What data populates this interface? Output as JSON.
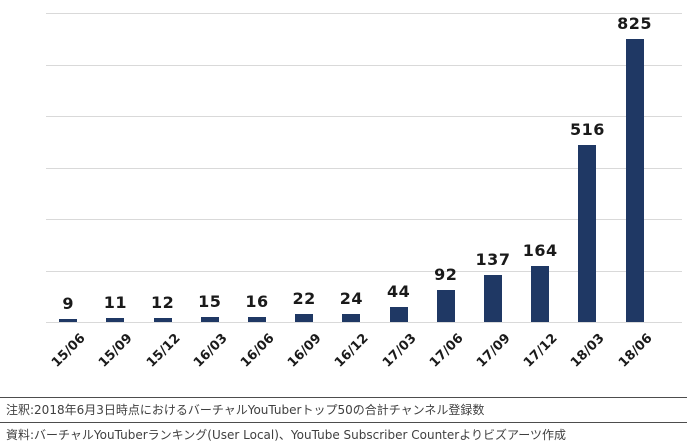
{
  "chart_data": {
    "type": "bar",
    "title": "",
    "xlabel": "",
    "ylabel": "",
    "categories": [
      "15/06",
      "15/09",
      "15/12",
      "16/03",
      "16/06",
      "16/09",
      "16/12",
      "17/03",
      "17/06",
      "17/09",
      "17/12",
      "18/03",
      "18/06"
    ],
    "values": [
      9,
      11,
      12,
      15,
      16,
      22,
      24,
      44,
      92,
      137,
      164,
      516,
      825
    ],
    "ylim": [
      0,
      900
    ],
    "gridline_interval": 150,
    "grid": true,
    "legend": "none",
    "data_labels": "above-bars",
    "bar_color": "#1f3864",
    "gridline_color": "#d9d9d9",
    "label_color": "#1a1a1a"
  },
  "notes": {
    "annotation": "注釈:2018年6月3日時点におけるバーチャルYouTuberトップ50の合計チャンネル登録数",
    "source": "資料:バーチャルYouTuberランキング(User Local)、YouTube Subscriber Counterよりビズアーツ作成"
  }
}
